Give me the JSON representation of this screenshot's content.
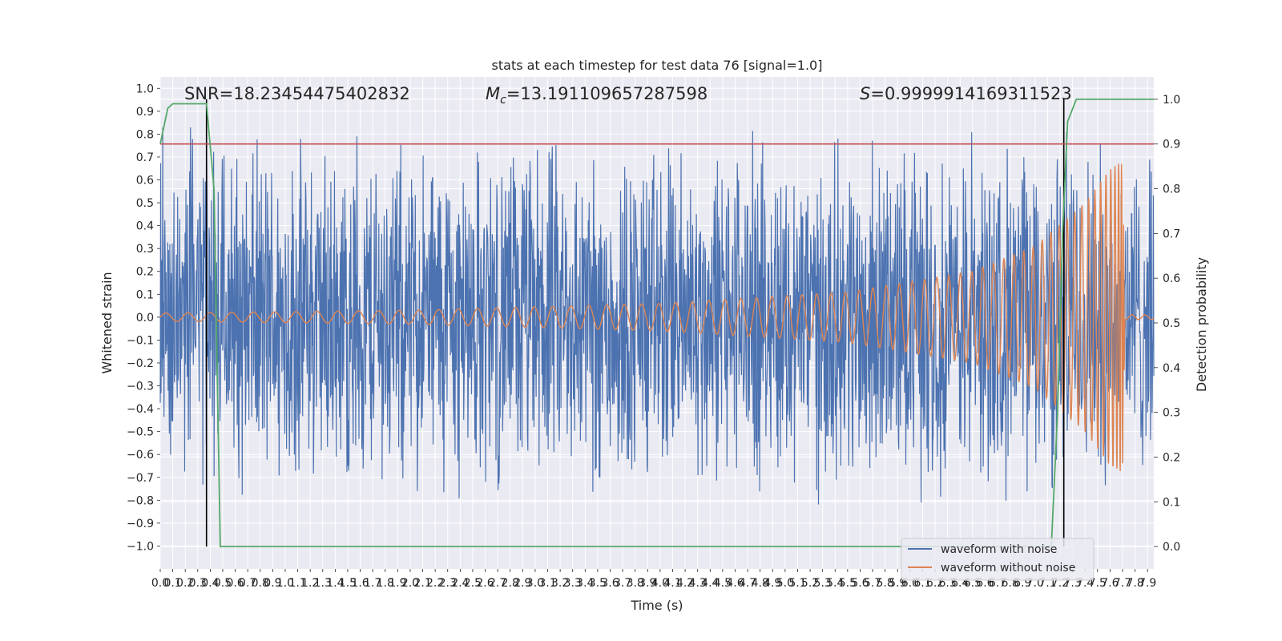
{
  "chart_data": {
    "type": "line",
    "title": "stats at each timestep for test data 76 [signal=1.0]",
    "xlabel": "Time (s)",
    "ylabel_left": "Whitened strain",
    "ylabel_right": "Detection probability",
    "xlim": [
      0.0,
      7.95
    ],
    "ylim_left": [
      -1.1,
      1.05
    ],
    "ylim_right": [
      -0.05,
      1.05
    ],
    "x_ticks": [
      "0.0",
      "0.1",
      "0.2",
      "0.3",
      "0.4",
      "0.5",
      "0.6",
      "0.7",
      "0.8",
      "0.9",
      "1.0",
      "1.1",
      "1.2",
      "1.3",
      "1.4",
      "1.5",
      "1.6",
      "1.7",
      "1.8",
      "1.9",
      "2.0",
      "2.1",
      "2.2",
      "2.3",
      "2.4",
      "2.5",
      "2.6",
      "2.7",
      "2.8",
      "2.9",
      "3.0",
      "3.1",
      "3.2",
      "3.3",
      "3.4",
      "3.5",
      "3.6",
      "3.7",
      "3.8",
      "3.9",
      "4.0",
      "4.1",
      "4.2",
      "4.3",
      "4.4",
      "4.5",
      "4.6",
      "4.7",
      "4.8",
      "4.9",
      "5.0",
      "5.1",
      "5.2",
      "5.3",
      "5.4",
      "5.5",
      "5.6",
      "5.7",
      "5.8",
      "5.9",
      "6.0",
      "6.1",
      "6.2",
      "6.3",
      "6.4",
      "6.5",
      "6.6",
      "6.7",
      "6.8",
      "6.9",
      "7.0",
      "7.1",
      "7.2",
      "7.3",
      "7.4",
      "7.5",
      "7.6",
      "7.7",
      "7.8",
      "7.9"
    ],
    "y_ticks_left": [
      "-1.0",
      "-0.9",
      "-0.8",
      "-0.7",
      "-0.6",
      "-0.5",
      "-0.4",
      "-0.3",
      "-0.2",
      "-0.1",
      "0.0",
      "0.1",
      "0.2",
      "0.3",
      "0.4",
      "0.5",
      "0.6",
      "0.7",
      "0.8",
      "0.9",
      "1.0"
    ],
    "y_ticks_right": [
      "0.0",
      "0.1",
      "0.2",
      "0.3",
      "0.4",
      "0.5",
      "0.6",
      "0.7",
      "0.8",
      "0.9",
      "1.0"
    ],
    "annotations": {
      "snr": "SNR=18.23454475402832",
      "mc_symbol": "M",
      "mc_sub": "c",
      "mc_value": "=13.191109657287598",
      "s_symbol": "S",
      "s_value": "=0.9999914169311523"
    },
    "threshold_right": 0.9,
    "vertical_markers": [
      0.37,
      7.23
    ],
    "series": [
      {
        "name": "waveform with noise",
        "color": "#4c72b0",
        "axis": "left",
        "amplitude_envelope": [
          [
            0.0,
            0.85
          ],
          [
            7.5,
            0.85
          ],
          [
            7.95,
            0.75
          ]
        ]
      },
      {
        "name": "waveform without noise",
        "color": "#dd8452",
        "axis": "left",
        "amplitude_envelope": [
          [
            0.0,
            0.018
          ],
          [
            2.0,
            0.03
          ],
          [
            4.0,
            0.06
          ],
          [
            5.5,
            0.11
          ],
          [
            6.5,
            0.2
          ],
          [
            7.0,
            0.31
          ],
          [
            7.4,
            0.5
          ],
          [
            7.6,
            0.65
          ],
          [
            7.7,
            0.68
          ],
          [
            7.72,
            0.02
          ],
          [
            7.95,
            0.02
          ]
        ]
      },
      {
        "name": "detection probability",
        "color": "#55a868",
        "axis": "right",
        "x": [
          0.0,
          0.06,
          0.1,
          0.2,
          0.37,
          0.43,
          0.48,
          0.6,
          1.0,
          2.0,
          3.0,
          4.0,
          5.0,
          6.0,
          7.0,
          7.13,
          7.18,
          7.22,
          7.26,
          7.33,
          7.5,
          7.95
        ],
        "y": [
          0.9,
          0.98,
          0.99,
          0.99,
          0.99,
          0.8,
          0.0,
          0.0,
          0.0,
          0.0,
          0.0,
          0.0,
          0.0,
          0.0,
          0.0,
          0.0,
          0.3,
          0.7,
          0.95,
          1.0,
          1.0,
          1.0
        ]
      }
    ],
    "legend": {
      "placement": "lower-right",
      "entries": [
        "waveform with noise",
        "waveform without noise"
      ]
    },
    "colors": {
      "background": "#eaeaf2",
      "grid": "#ffffff",
      "threshold": "#c44e52",
      "marker": "#000000"
    },
    "grid": true
  }
}
